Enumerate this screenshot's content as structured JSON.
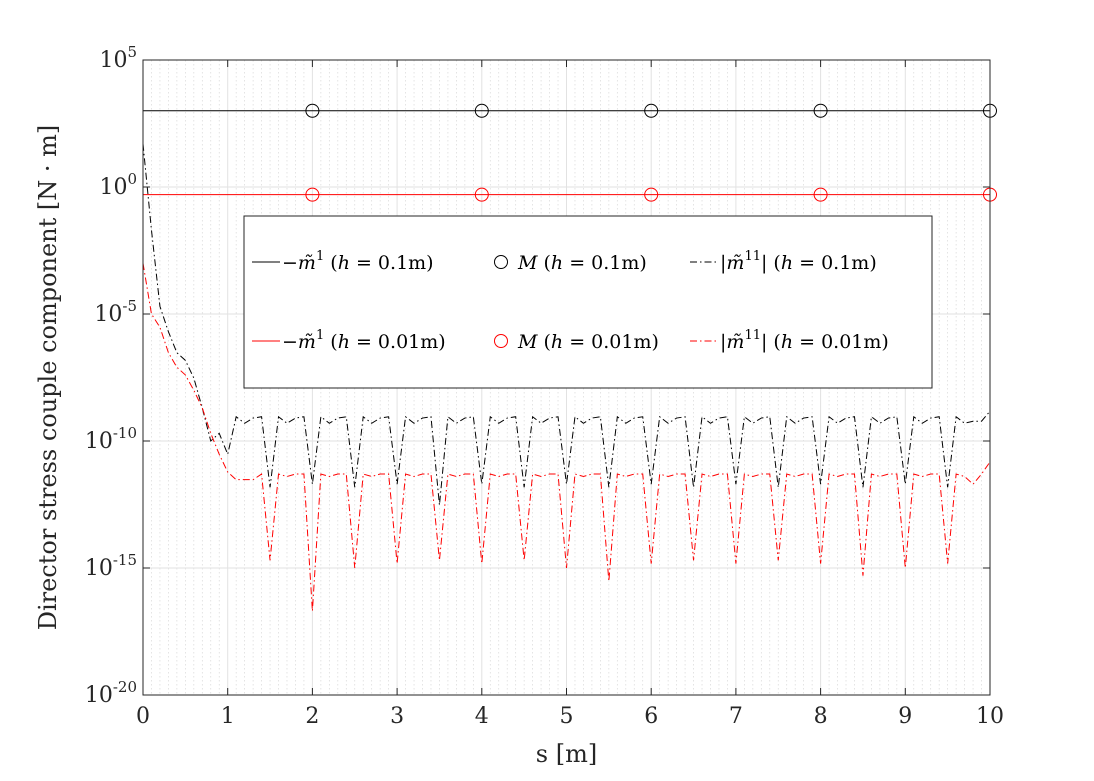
{
  "chart_data": {
    "type": "line",
    "xlabel": "s [m]",
    "ylabel": "Director stress couple component [N · m]",
    "xlim": [
      0,
      10
    ],
    "ylim": [
      1e-20,
      100000.0
    ],
    "yscale": "log",
    "x_ticks": [
      "0",
      "1",
      "2",
      "3",
      "4",
      "5",
      "6",
      "7",
      "8",
      "9",
      "10"
    ],
    "y_ticks": [
      {
        "base": "10",
        "exp": "-20",
        "value": 1e-20
      },
      {
        "base": "10",
        "exp": "-15",
        "value": 1e-15
      },
      {
        "base": "10",
        "exp": "-10",
        "value": 1e-10
      },
      {
        "base": "10",
        "exp": "-5",
        "value": 1e-05
      },
      {
        "base": "10",
        "exp": "0",
        "value": 1
      },
      {
        "base": "10",
        "exp": "5",
        "value": 100000.0
      }
    ],
    "grid": true,
    "minor_grid_x": true,
    "legend_position": "upper-middle",
    "series": [
      {
        "name": "−m̃¹ (h = 0.1m)",
        "color": "#000000",
        "style": "solid",
        "marker": "none",
        "x": [
          0,
          10
        ],
        "y": [
          1000,
          1000
        ]
      },
      {
        "name": "M (h = 0.1m)",
        "color": "#000000",
        "style": "none",
        "marker": "circle",
        "x": [
          2,
          4,
          6,
          8,
          10
        ],
        "y": [
          1000,
          1000,
          1000,
          1000,
          1000
        ]
      },
      {
        "name": "|m̃¹¹| (h = 0.1m)",
        "color": "#000000",
        "style": "dashdot",
        "marker": "none",
        "x": [
          0,
          0.1,
          0.2,
          0.3,
          0.4,
          0.5,
          0.6,
          0.7,
          0.8,
          0.9,
          1.0,
          1.1,
          1.2,
          1.3,
          1.4,
          1.5,
          1.6,
          1.7,
          1.8,
          1.9,
          2.0,
          2.1,
          2.2,
          2.3,
          2.4,
          2.5,
          2.6,
          2.7,
          2.8,
          2.9,
          3.0,
          3.1,
          3.2,
          3.3,
          3.4,
          3.5,
          3.6,
          3.7,
          3.8,
          3.9,
          4.0,
          4.1,
          4.2,
          4.3,
          4.4,
          4.5,
          4.6,
          4.7,
          4.8,
          4.9,
          5.0,
          5.1,
          5.2,
          5.3,
          5.4,
          5.5,
          5.6,
          5.7,
          5.8,
          5.9,
          6.0,
          6.1,
          6.2,
          6.3,
          6.4,
          6.5,
          6.6,
          6.7,
          6.8,
          6.9,
          7.0,
          7.1,
          7.2,
          7.3,
          7.4,
          7.5,
          7.6,
          7.7,
          7.8,
          7.9,
          8.0,
          8.1,
          8.2,
          8.3,
          8.4,
          8.5,
          8.6,
          8.7,
          8.8,
          8.9,
          9.0,
          9.1,
          9.2,
          9.3,
          9.4,
          9.5,
          9.6,
          9.7,
          9.8,
          9.9,
          10.0
        ],
        "y": [
          50,
          0.02,
          2e-05,
          2e-06,
          3e-07,
          1.5e-07,
          3e-08,
          2e-09,
          1e-10,
          2e-10,
          3e-11,
          9e-10,
          5e-10,
          8e-10,
          9e-10,
          1.5e-12,
          9e-10,
          5e-10,
          8e-10,
          9e-10,
          2e-12,
          9e-10,
          5e-10,
          8e-10,
          9e-10,
          1.5e-12,
          9e-10,
          5e-10,
          8e-10,
          9e-10,
          2e-12,
          9e-10,
          5e-10,
          8e-10,
          9e-10,
          3e-13,
          9e-10,
          5e-10,
          8e-10,
          9e-10,
          2e-12,
          9e-10,
          5e-10,
          8e-10,
          9e-10,
          1.5e-12,
          9e-10,
          5e-10,
          8e-10,
          9e-10,
          2e-12,
          9e-10,
          5e-10,
          8e-10,
          9e-10,
          1.5e-12,
          9e-10,
          5e-10,
          8e-10,
          9e-10,
          2e-12,
          9e-10,
          5e-10,
          8e-10,
          9e-10,
          1.5e-12,
          9e-10,
          5e-10,
          8e-10,
          9e-10,
          2e-12,
          9e-10,
          5e-10,
          8e-10,
          9e-10,
          1.5e-12,
          9e-10,
          5e-10,
          8e-10,
          9e-10,
          2e-12,
          9e-10,
          5e-10,
          8e-10,
          9e-10,
          1.5e-12,
          9e-10,
          5e-10,
          8e-10,
          9e-10,
          2e-12,
          9e-10,
          5e-10,
          8e-10,
          9e-10,
          1.5e-12,
          9e-10,
          5e-10,
          6e-10,
          6e-10,
          1.5e-09
        ]
      },
      {
        "name": "−m̃¹ (h = 0.01m)",
        "color": "#ff0000",
        "style": "solid",
        "marker": "none",
        "x": [
          0,
          10
        ],
        "y": [
          0.5,
          0.5
        ]
      },
      {
        "name": "M (h = 0.01m)",
        "color": "#ff0000",
        "style": "none",
        "marker": "circle",
        "x": [
          2,
          4,
          6,
          8,
          10
        ],
        "y": [
          0.5,
          0.5,
          0.5,
          0.5,
          0.5
        ]
      },
      {
        "name": "|m̃¹¹| (h = 0.01m)",
        "color": "#ff0000",
        "style": "dashdot",
        "marker": "none",
        "x": [
          0,
          0.1,
          0.2,
          0.3,
          0.4,
          0.5,
          0.6,
          0.7,
          0.8,
          0.9,
          1.0,
          1.1,
          1.2,
          1.3,
          1.4,
          1.5,
          1.6,
          1.7,
          1.8,
          1.9,
          2.0,
          2.1,
          2.2,
          2.3,
          2.4,
          2.5,
          2.6,
          2.7,
          2.8,
          2.9,
          3.0,
          3.1,
          3.2,
          3.3,
          3.4,
          3.5,
          3.6,
          3.7,
          3.8,
          3.9,
          4.0,
          4.1,
          4.2,
          4.3,
          4.4,
          4.5,
          4.6,
          4.7,
          4.8,
          4.9,
          5.0,
          5.1,
          5.2,
          5.3,
          5.4,
          5.5,
          5.6,
          5.7,
          5.8,
          5.9,
          6.0,
          6.1,
          6.2,
          6.3,
          6.4,
          6.5,
          6.6,
          6.7,
          6.8,
          6.9,
          7.0,
          7.1,
          7.2,
          7.3,
          7.4,
          7.5,
          7.6,
          7.7,
          7.8,
          7.9,
          8.0,
          8.1,
          8.2,
          8.3,
          8.4,
          8.5,
          8.6,
          8.7,
          8.8,
          8.9,
          9.0,
          9.1,
          9.2,
          9.3,
          9.4,
          9.5,
          9.6,
          9.7,
          9.8,
          9.9,
          10.0
        ],
        "y": [
          0.001,
          1e-05,
          3e-06,
          3e-07,
          8e-08,
          4e-08,
          1e-08,
          2e-09,
          2e-10,
          3e-11,
          6e-12,
          3e-12,
          3e-12,
          3e-12,
          5e-12,
          2e-15,
          5e-12,
          4e-12,
          5e-12,
          5e-12,
          2e-17,
          5e-12,
          4e-12,
          5e-12,
          5e-12,
          1e-15,
          5e-12,
          4e-12,
          5e-12,
          5e-12,
          1.5e-15,
          5e-12,
          4e-12,
          5e-12,
          5e-12,
          2e-15,
          5e-12,
          4e-12,
          5e-12,
          5e-12,
          1.5e-15,
          5e-12,
          4e-12,
          5e-12,
          5e-12,
          2e-15,
          5e-12,
          4e-12,
          5e-12,
          5e-12,
          1e-15,
          5e-12,
          4e-12,
          5e-12,
          5e-12,
          3e-16,
          5e-12,
          4e-12,
          5e-12,
          5e-12,
          1.5e-15,
          5e-12,
          4e-12,
          5e-12,
          5e-12,
          2e-15,
          5e-12,
          4e-12,
          5e-12,
          5e-12,
          1.5e-15,
          5e-12,
          4e-12,
          5e-12,
          5e-12,
          2e-15,
          5e-12,
          4e-12,
          5e-12,
          5e-12,
          1.5e-15,
          5e-12,
          4e-12,
          5e-12,
          5e-12,
          5e-16,
          5e-12,
          4e-12,
          5e-12,
          5e-12,
          1e-15,
          5e-12,
          4e-12,
          5e-12,
          5e-12,
          1.5e-15,
          5e-12,
          4e-12,
          2e-12,
          5e-12,
          1.5e-11
        ]
      }
    ],
    "legend": [
      {
        "series": 0,
        "pre": "−",
        "sym": "m̃",
        "sup": "1",
        "post": " (",
        "var": "h",
        "eq": " = 0.1m)"
      },
      {
        "series": 1,
        "pre": "",
        "sym": "M",
        "sup": "",
        "post": " (",
        "var": "h",
        "eq": " = 0.1m)"
      },
      {
        "series": 2,
        "pre": "|",
        "sym": "m̃",
        "sup": "11",
        "post": "| (",
        "var": "h",
        "eq": " = 0.1m)"
      },
      {
        "series": 3,
        "pre": "−",
        "sym": "m̃",
        "sup": "1",
        "post": " (",
        "var": "h",
        "eq": " = 0.01m)"
      },
      {
        "series": 4,
        "pre": "",
        "sym": "M",
        "sup": "",
        "post": " (",
        "var": "h",
        "eq": " = 0.01m)"
      },
      {
        "series": 5,
        "pre": "|",
        "sym": "m̃",
        "sup": "11",
        "post": "| (",
        "var": "h",
        "eq": " = 0.01m)"
      }
    ]
  }
}
